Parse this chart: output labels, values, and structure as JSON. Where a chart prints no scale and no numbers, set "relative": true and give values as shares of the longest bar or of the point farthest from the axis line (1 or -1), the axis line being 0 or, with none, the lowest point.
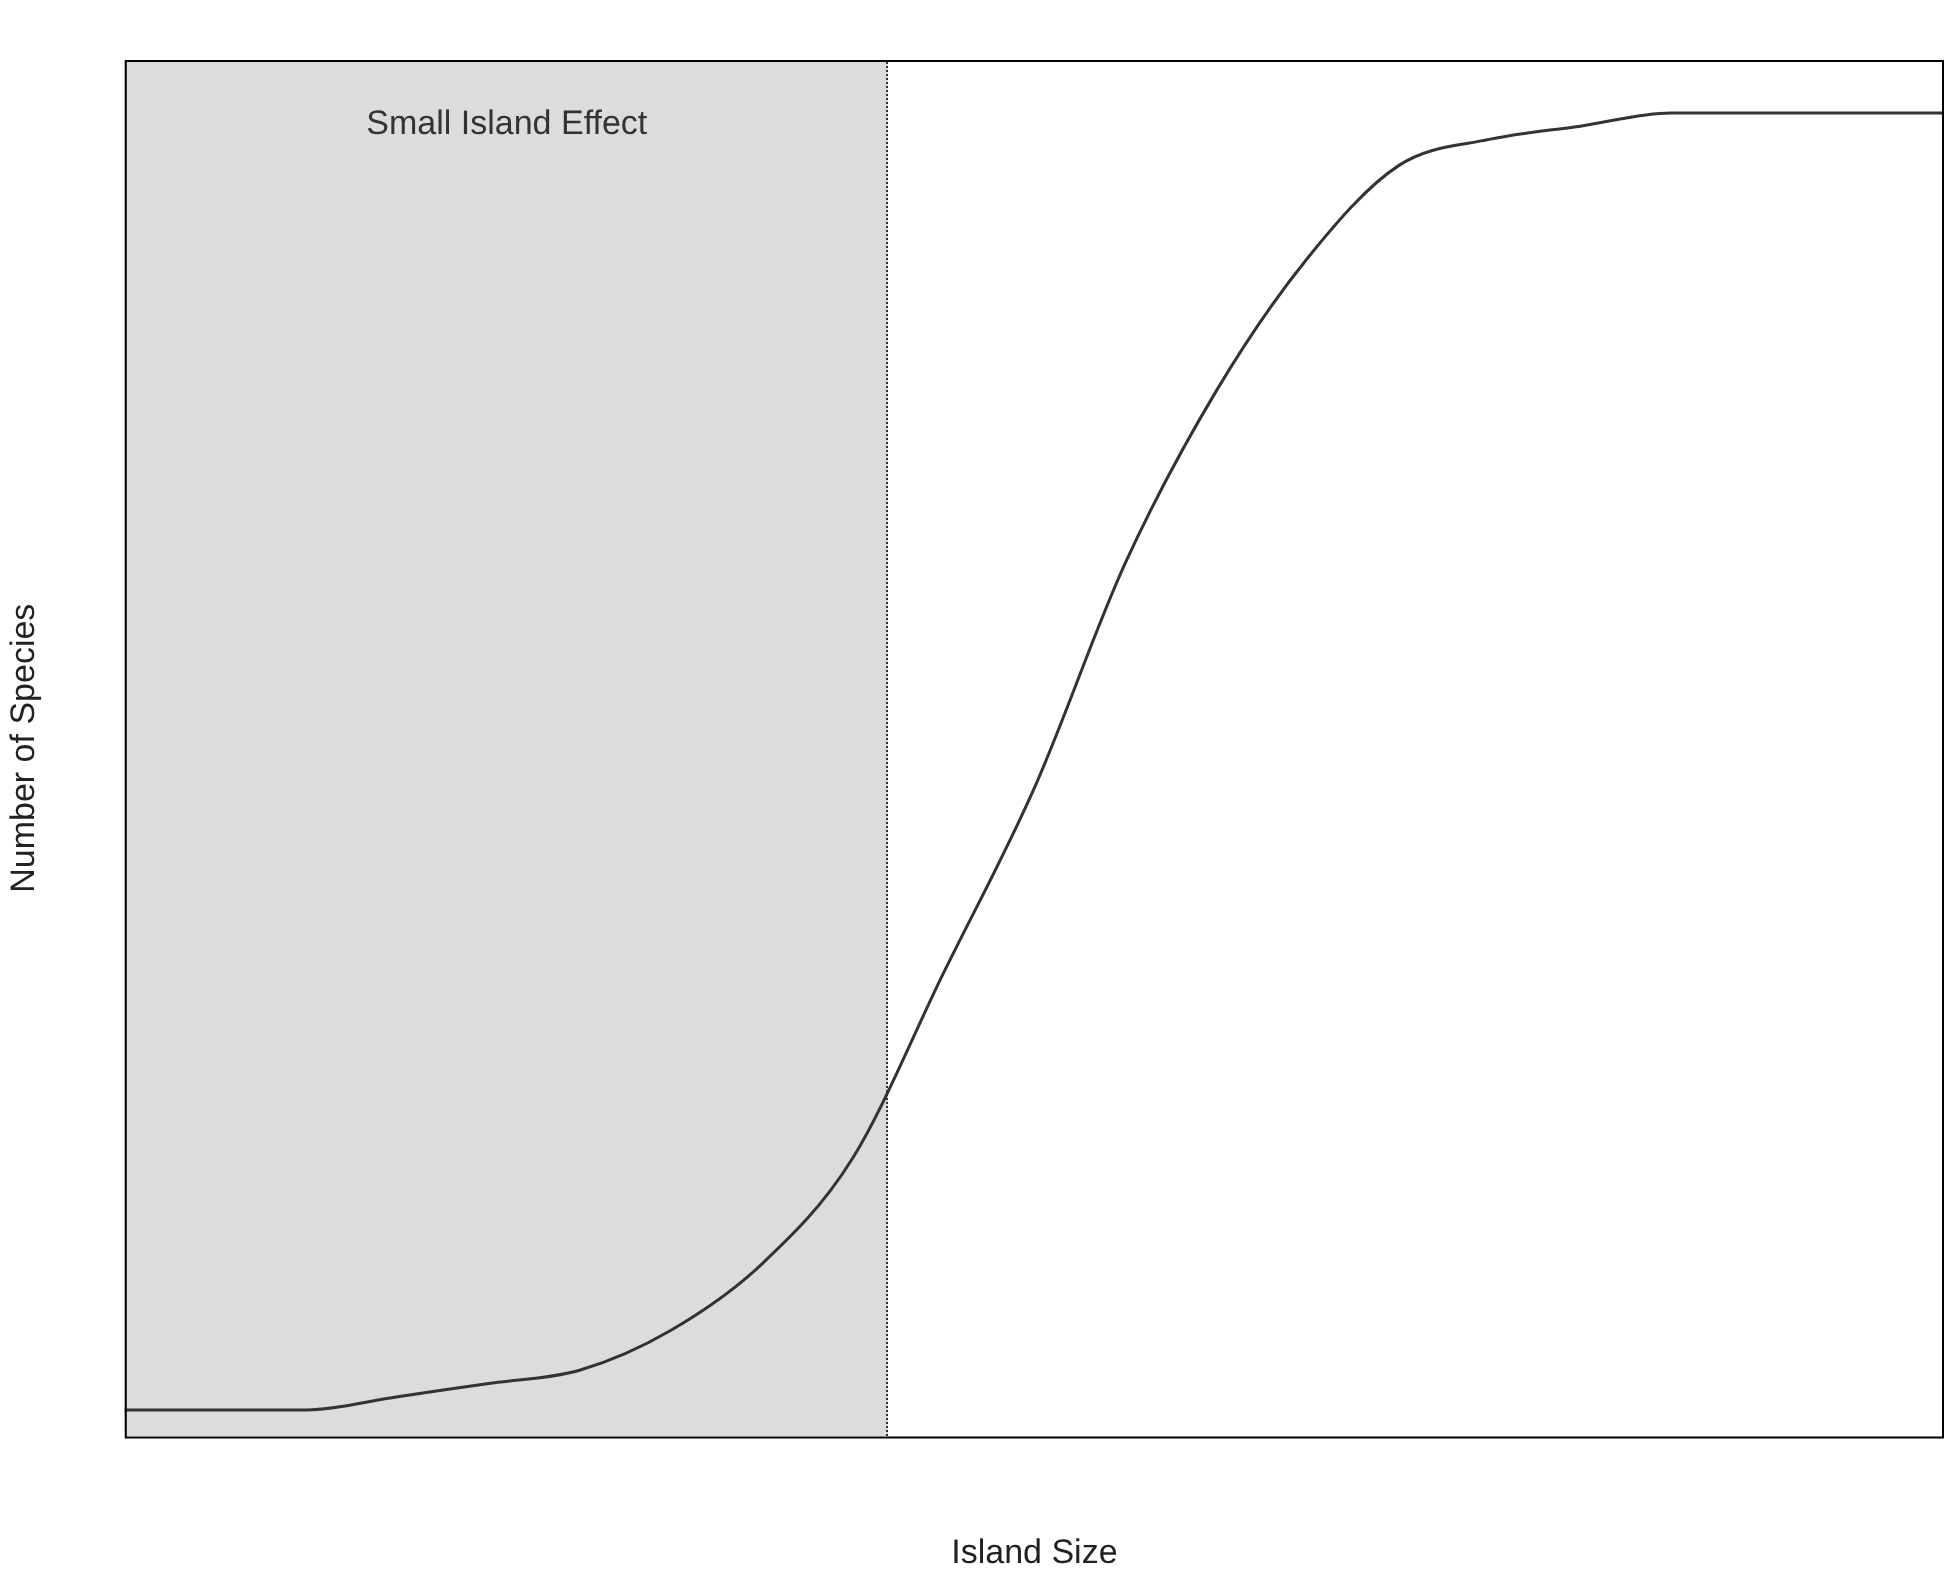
{
  "chart_data": {
    "type": "line",
    "relative": true,
    "xlabel": "Island Size",
    "ylabel": "Number of Species",
    "categories": [
      null,
      null,
      null,
      null,
      null,
      null,
      null,
      null,
      null,
      null,
      null,
      null,
      null,
      null,
      null,
      null,
      null,
      null,
      null,
      null,
      null
    ],
    "series": [
      {
        "color": "#333333",
        "values": [
          0.02,
          0.02,
          0.02,
          0.03,
          0.04,
          0.05,
          0.08,
          0.13,
          0.21,
          0.35,
          0.49,
          0.66,
          0.79,
          0.89,
          0.96,
          0.98,
          0.99,
          1.0,
          1.0,
          1.0,
          1.0
        ]
      }
    ],
    "annotations": [
      "Small Island Effect"
    ],
    "grid": false,
    "legend": false,
    "marker": "none",
    "line_style": "solid"
  }
}
